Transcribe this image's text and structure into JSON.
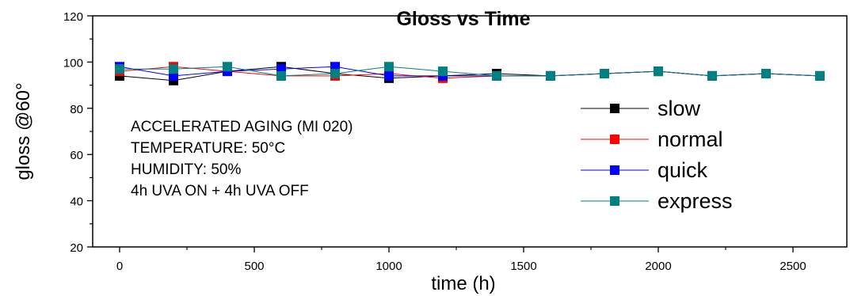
{
  "chart_data": {
    "type": "line",
    "title": "Gloss vs Time",
    "xlabel": "time (h)",
    "ylabel": "gloss @60°",
    "xlim": [
      -100,
      2700
    ],
    "ylim": [
      20,
      120
    ],
    "xticks": [
      0,
      500,
      1000,
      1500,
      2000,
      2500
    ],
    "yticks": [
      20,
      40,
      60,
      80,
      100,
      120
    ],
    "grid": false,
    "legend_position": "right",
    "series": [
      {
        "name": "slow",
        "color": "#000000",
        "x": [
          0,
          200,
          400,
          600,
          800,
          1000,
          1200,
          1400,
          1600,
          1800,
          2000,
          2200,
          2400,
          2600
        ],
        "y": [
          94,
          92,
          96,
          98,
          95,
          93,
          94,
          95,
          94,
          95,
          96,
          94,
          95,
          94
        ]
      },
      {
        "name": "normal",
        "color": "#ff0000",
        "x": [
          0,
          200,
          400,
          600,
          800,
          1000,
          1200,
          1400,
          1600,
          1800,
          2000,
          2200,
          2400,
          2600
        ],
        "y": [
          96,
          98,
          96,
          94,
          94,
          95,
          93,
          94,
          94,
          95,
          96,
          94,
          95,
          94
        ]
      },
      {
        "name": "quick",
        "color": "#0000ff",
        "x": [
          0,
          200,
          400,
          600,
          800,
          1000,
          1200,
          1400,
          1600,
          1800,
          2000,
          2200,
          2400,
          2600
        ],
        "y": [
          98,
          94,
          96,
          97,
          98,
          94,
          94,
          94,
          94,
          95,
          96,
          94,
          95,
          94
        ]
      },
      {
        "name": "express",
        "color": "#008080",
        "x": [
          0,
          200,
          400,
          600,
          800,
          1000,
          1200,
          1400,
          1600,
          1800,
          2000,
          2200,
          2400,
          2600
        ],
        "y": [
          97,
          97,
          98,
          94,
          95,
          98,
          96,
          94,
          94,
          95,
          96,
          94,
          95,
          94
        ]
      }
    ],
    "annotations": [
      "ACCELERATED AGING (MI 020)",
      "TEMPERATURE: 50°C",
      "HUMIDITY: 50%",
      "4h UVA ON + 4h UVA OFF"
    ]
  }
}
